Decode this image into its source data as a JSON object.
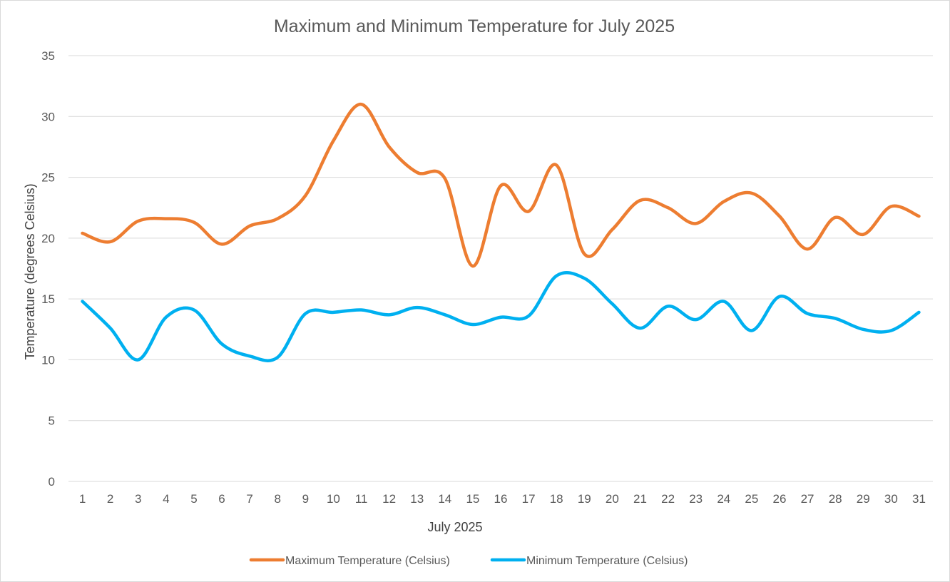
{
  "chart_data": {
    "type": "line",
    "title": "Maximum and Minimum Temperature for July 2025",
    "xlabel": "July 2025",
    "ylabel": "Temperature (degrees Celsius)",
    "categories": [
      "1",
      "2",
      "3",
      "4",
      "5",
      "6",
      "7",
      "8",
      "9",
      "10",
      "11",
      "12",
      "13",
      "14",
      "15",
      "16",
      "17",
      "18",
      "19",
      "20",
      "21",
      "22",
      "23",
      "24",
      "25",
      "26",
      "27",
      "28",
      "29",
      "30",
      "31"
    ],
    "y_ticks": [
      "0",
      "5",
      "10",
      "15",
      "20",
      "25",
      "30",
      "35"
    ],
    "ylim": [
      0,
      35
    ],
    "grid": true,
    "legend_position": "bottom",
    "series": [
      {
        "name": "Maximum Temperature (Celsius)",
        "color": "#ED7D31",
        "values": [
          20.4,
          19.7,
          21.4,
          21.6,
          21.3,
          19.5,
          21.0,
          21.6,
          23.5,
          28.0,
          31.0,
          27.5,
          25.4,
          24.9,
          17.7,
          24.3,
          22.2,
          26.0,
          18.7,
          20.7,
          23.1,
          22.5,
          21.2,
          23.0,
          23.7,
          21.8,
          19.1,
          21.7,
          20.3,
          22.6,
          21.8
        ]
      },
      {
        "name": "Minimum Temperature (Celsius)",
        "color": "#00B0F0",
        "values": [
          14.8,
          12.6,
          10.0,
          13.5,
          14.1,
          11.3,
          10.3,
          10.2,
          13.8,
          13.9,
          14.1,
          13.7,
          14.3,
          13.7,
          12.9,
          13.5,
          13.6,
          16.9,
          16.7,
          14.6,
          12.6,
          14.4,
          13.3,
          14.8,
          12.4,
          15.2,
          13.8,
          13.4,
          12.5,
          12.4,
          13.9
        ]
      }
    ]
  }
}
